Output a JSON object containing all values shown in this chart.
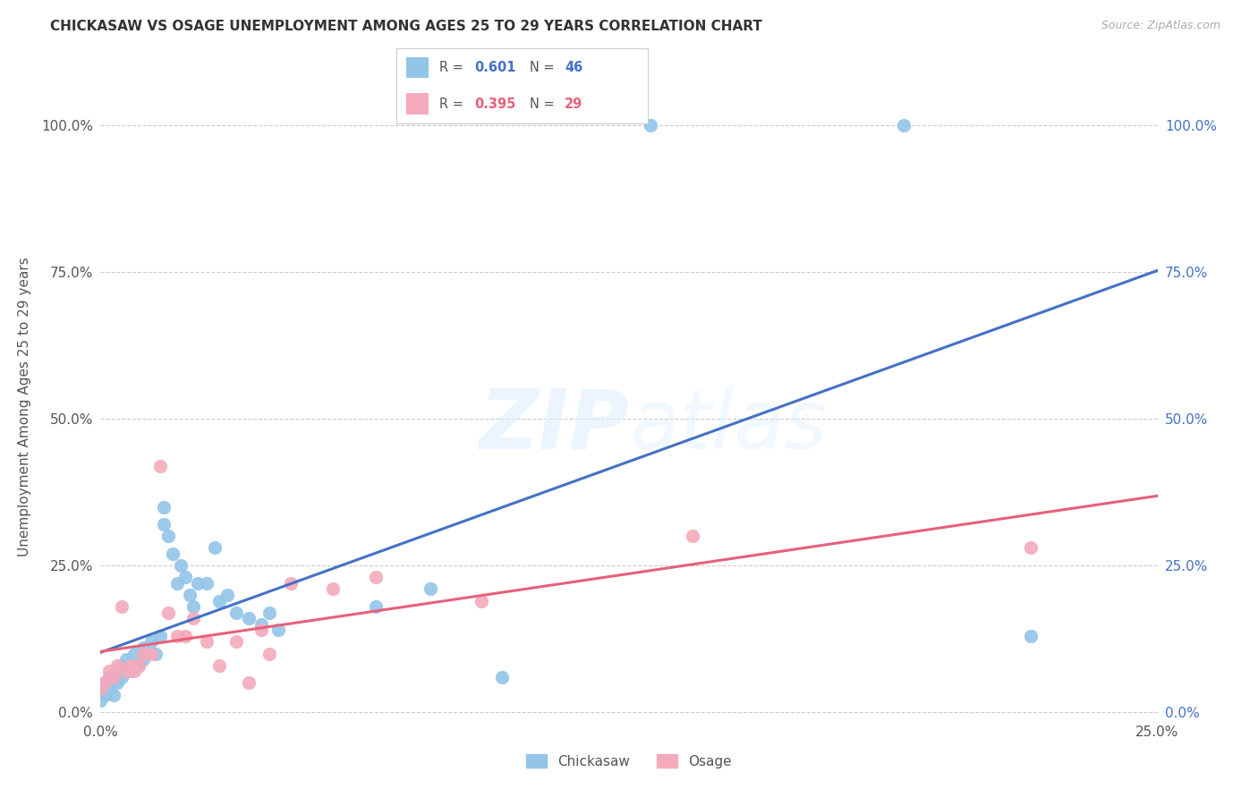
{
  "title": "CHICKASAW VS OSAGE UNEMPLOYMENT AMONG AGES 25 TO 29 YEARS CORRELATION CHART",
  "source": "Source: ZipAtlas.com",
  "ylabel": "Unemployment Among Ages 25 to 29 years",
  "xlim": [
    0.0,
    0.25
  ],
  "ylim": [
    -0.01,
    1.05
  ],
  "yticks": [
    0.0,
    0.25,
    0.5,
    0.75,
    1.0
  ],
  "ytick_labels": [
    "0.0%",
    "25.0%",
    "50.0%",
    "75.0%",
    "100.0%"
  ],
  "xticks": [
    0.0,
    0.05,
    0.1,
    0.15,
    0.2,
    0.25
  ],
  "xtick_labels": [
    "0.0%",
    "",
    "",
    "",
    "",
    "25.0%"
  ],
  "chickasaw_color": "#92C5E8",
  "osage_color": "#F4AABB",
  "chickasaw_line_color": "#4472C4",
  "osage_line_color": "#E8607A",
  "chickasaw_R": "0.601",
  "chickasaw_N": "46",
  "osage_R": "0.395",
  "osage_N": "29",
  "background_color": "#FFFFFF",
  "grid_color": "#CCCCCC",
  "chickasaw_x": [
    0.0,
    0.0,
    0.001,
    0.001,
    0.002,
    0.002,
    0.003,
    0.003,
    0.004,
    0.004,
    0.005,
    0.005,
    0.006,
    0.007,
    0.008,
    0.009,
    0.01,
    0.01,
    0.012,
    0.013,
    0.014,
    0.015,
    0.015,
    0.016,
    0.017,
    0.018,
    0.019,
    0.02,
    0.021,
    0.022,
    0.023,
    0.025,
    0.027,
    0.028,
    0.03,
    0.032,
    0.035,
    0.038,
    0.04,
    0.042,
    0.065,
    0.078,
    0.095,
    0.13,
    0.19,
    0.22
  ],
  "chickasaw_y": [
    0.04,
    0.02,
    0.05,
    0.03,
    0.06,
    0.04,
    0.06,
    0.03,
    0.07,
    0.05,
    0.08,
    0.06,
    0.09,
    0.07,
    0.1,
    0.08,
    0.11,
    0.09,
    0.12,
    0.1,
    0.13,
    0.35,
    0.32,
    0.3,
    0.27,
    0.22,
    0.25,
    0.23,
    0.2,
    0.18,
    0.22,
    0.22,
    0.28,
    0.19,
    0.2,
    0.17,
    0.16,
    0.15,
    0.17,
    0.14,
    0.18,
    0.21,
    0.06,
    1.0,
    1.0,
    0.13
  ],
  "osage_x": [
    0.0,
    0.001,
    0.002,
    0.003,
    0.004,
    0.005,
    0.006,
    0.007,
    0.008,
    0.009,
    0.01,
    0.012,
    0.014,
    0.016,
    0.018,
    0.02,
    0.022,
    0.025,
    0.028,
    0.032,
    0.035,
    0.038,
    0.04,
    0.045,
    0.055,
    0.065,
    0.09,
    0.14,
    0.22
  ],
  "osage_y": [
    0.04,
    0.05,
    0.07,
    0.06,
    0.08,
    0.18,
    0.07,
    0.08,
    0.07,
    0.08,
    0.1,
    0.1,
    0.42,
    0.17,
    0.13,
    0.13,
    0.16,
    0.12,
    0.08,
    0.12,
    0.05,
    0.14,
    0.1,
    0.22,
    0.21,
    0.23,
    0.19,
    0.3,
    0.28
  ]
}
